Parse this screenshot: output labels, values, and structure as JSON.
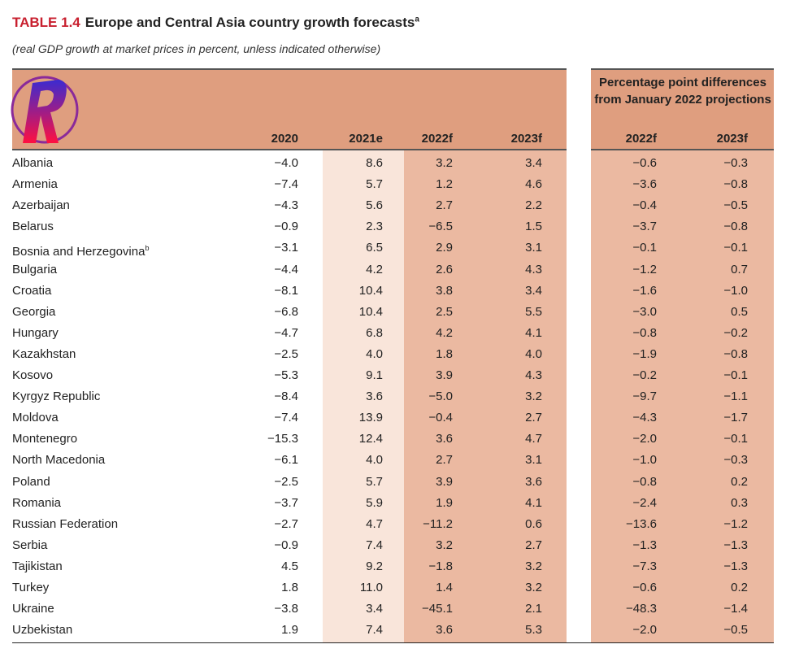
{
  "title": {
    "label": "TABLE 1.4",
    "text": "Europe and Central Asia country growth forecasts",
    "footnote": "a"
  },
  "subtitle": "(real GDP growth at market prices in percent, unless indicated otherwise)",
  "logo": {
    "letter": "R"
  },
  "colors": {
    "header": "#df9e7f",
    "band_2021e": "#f9e5da",
    "band_forecast": "#ebb9a1",
    "title_label": "#c8202f"
  },
  "group_header": "Percentage point differences from January 2022 projections",
  "columns": [
    "2020",
    "2021e",
    "2022f",
    "2023f"
  ],
  "diff_columns": [
    "2022f",
    "2023f"
  ],
  "rows": [
    {
      "country": "Albania",
      "sup": "",
      "v": [
        "−4.0",
        "8.6",
        "3.2",
        "3.4",
        "−0.6",
        "−0.3"
      ]
    },
    {
      "country": "Armenia",
      "sup": "",
      "v": [
        "−7.4",
        "5.7",
        "1.2",
        "4.6",
        "−3.6",
        "−0.8"
      ]
    },
    {
      "country": "Azerbaijan",
      "sup": "",
      "v": [
        "−4.3",
        "5.6",
        "2.7",
        "2.2",
        "−0.4",
        "−0.5"
      ]
    },
    {
      "country": "Belarus",
      "sup": "",
      "v": [
        "−0.9",
        "2.3",
        "−6.5",
        "1.5",
        "−3.7",
        "−0.8"
      ]
    },
    {
      "country": "Bosnia and Herzegovina",
      "sup": "b",
      "v": [
        "−3.1",
        "6.5",
        "2.9",
        "3.1",
        "−0.1",
        "−0.1"
      ]
    },
    {
      "country": "Bulgaria",
      "sup": "",
      "v": [
        "−4.4",
        "4.2",
        "2.6",
        "4.3",
        "−1.2",
        "0.7"
      ]
    },
    {
      "country": "Croatia",
      "sup": "",
      "v": [
        "−8.1",
        "10.4",
        "3.8",
        "3.4",
        "−1.6",
        "−1.0"
      ]
    },
    {
      "country": "Georgia",
      "sup": "",
      "v": [
        "−6.8",
        "10.4",
        "2.5",
        "5.5",
        "−3.0",
        "0.5"
      ]
    },
    {
      "country": "Hungary",
      "sup": "",
      "v": [
        "−4.7",
        "6.8",
        "4.2",
        "4.1",
        "−0.8",
        "−0.2"
      ]
    },
    {
      "country": "Kazakhstan",
      "sup": "",
      "v": [
        "−2.5",
        "4.0",
        "1.8",
        "4.0",
        "−1.9",
        "−0.8"
      ]
    },
    {
      "country": "Kosovo",
      "sup": "",
      "v": [
        "−5.3",
        "9.1",
        "3.9",
        "4.3",
        "−0.2",
        "−0.1"
      ]
    },
    {
      "country": "Kyrgyz Republic",
      "sup": "",
      "v": [
        "−8.4",
        "3.6",
        "−5.0",
        "3.2",
        "−9.7",
        "−1.1"
      ]
    },
    {
      "country": "Moldova",
      "sup": "",
      "v": [
        "−7.4",
        "13.9",
        "−0.4",
        "2.7",
        "−4.3",
        "−1.7"
      ]
    },
    {
      "country": "Montenegro",
      "sup": "",
      "v": [
        "−15.3",
        "12.4",
        "3.6",
        "4.7",
        "−2.0",
        "−0.1"
      ]
    },
    {
      "country": "North Macedonia",
      "sup": "",
      "v": [
        "−6.1",
        "4.0",
        "2.7",
        "3.1",
        "−1.0",
        "−0.3"
      ]
    },
    {
      "country": "Poland",
      "sup": "",
      "v": [
        "−2.5",
        "5.7",
        "3.9",
        "3.6",
        "−0.8",
        "0.2"
      ]
    },
    {
      "country": "Romania",
      "sup": "",
      "v": [
        "−3.7",
        "5.9",
        "1.9",
        "4.1",
        "−2.4",
        "0.3"
      ]
    },
    {
      "country": "Russian Federation",
      "sup": "",
      "v": [
        "−2.7",
        "4.7",
        "−11.2",
        "0.6",
        "−13.6",
        "−1.2"
      ]
    },
    {
      "country": "Serbia",
      "sup": "",
      "v": [
        "−0.9",
        "7.4",
        "3.2",
        "2.7",
        "−1.3",
        "−1.3"
      ]
    },
    {
      "country": "Tajikistan",
      "sup": "",
      "v": [
        "4.5",
        "9.2",
        "−1.8",
        "3.2",
        "−7.3",
        "−1.3"
      ]
    },
    {
      "country": "Turkey",
      "sup": "",
      "v": [
        "1.8",
        "11.0",
        "1.4",
        "3.2",
        "−0.6",
        "0.2"
      ]
    },
    {
      "country": "Ukraine",
      "sup": "",
      "v": [
        "−3.8",
        "3.4",
        "−45.1",
        "2.1",
        "−48.3",
        "−1.4"
      ]
    },
    {
      "country": "Uzbekistan",
      "sup": "",
      "v": [
        "1.9",
        "7.4",
        "3.6",
        "5.3",
        "−2.0",
        "−0.5"
      ]
    }
  ]
}
